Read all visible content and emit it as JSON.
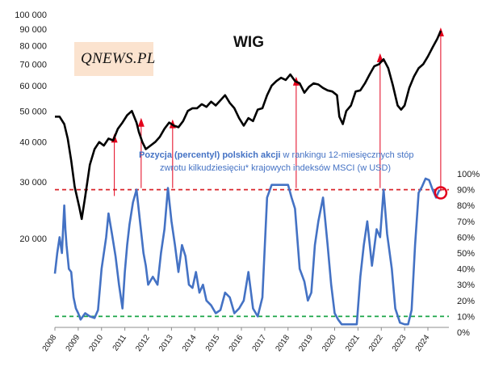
{
  "logo": {
    "text": "QNEWS.PL"
  },
  "chart_data": {
    "type": "line",
    "title": "WIG",
    "annotation": {
      "line1_bold": "Pozycja (percentyl) polskich akcji",
      "line1_rest": " w rankingu 12-miesięcznych stóp",
      "line2": "zwrotu kilkudziesięciu* krajowych indeksów MSCI (w USD)"
    },
    "x_axis": {
      "labels": [
        "2008",
        "2009",
        "2010",
        "2011",
        "2012",
        "2013",
        "2014",
        "2015",
        "2016",
        "2017",
        "2018",
        "2019",
        "2020",
        "2021",
        "2022",
        "2023",
        "2024"
      ],
      "range": [
        2008,
        2024.9
      ]
    },
    "y_left": {
      "scale": "log",
      "range": [
        10000,
        100000
      ],
      "ticks": [
        [
          20000,
          "20 000"
        ],
        [
          30000,
          "30 000"
        ],
        [
          40000,
          "40 000"
        ],
        [
          50000,
          "50 000"
        ],
        [
          60000,
          "60 000"
        ],
        [
          70000,
          "70 000"
        ],
        [
          80000,
          "80 000"
        ],
        [
          90000,
          "90 000"
        ],
        [
          100000,
          "100 000"
        ]
      ]
    },
    "y_right": {
      "range": [
        0,
        100
      ],
      "ticks": [
        [
          0,
          "0%"
        ],
        [
          10,
          "10%"
        ],
        [
          20,
          "20%"
        ],
        [
          30,
          "30%"
        ],
        [
          40,
          "40%"
        ],
        [
          50,
          "50%"
        ],
        [
          60,
          "60%"
        ],
        [
          70,
          "70%"
        ],
        [
          80,
          "80%"
        ],
        [
          90,
          "90%"
        ],
        [
          100,
          "100%"
        ]
      ]
    },
    "reference_lines": [
      {
        "axis": "right",
        "value": 90,
        "color": "#d9262b",
        "style": "dashed"
      },
      {
        "axis": "right",
        "value": 10,
        "color": "#1aa447",
        "style": "dashed"
      }
    ],
    "series": [
      {
        "axis": "left",
        "color": "#000000",
        "x": [
          2008.0,
          2008.2,
          2008.4,
          2008.55,
          2008.7,
          2008.85,
          2009.05,
          2009.15,
          2009.3,
          2009.5,
          2009.7,
          2009.9,
          2010.1,
          2010.3,
          2010.5,
          2010.7,
          2010.9,
          2011.1,
          2011.3,
          2011.5,
          2011.6,
          2011.75,
          2011.9,
          2012.1,
          2012.3,
          2012.5,
          2012.7,
          2012.9,
          2013.1,
          2013.3,
          2013.5,
          2013.7,
          2013.9,
          2014.1,
          2014.3,
          2014.5,
          2014.7,
          2014.9,
          2015.1,
          2015.3,
          2015.5,
          2015.7,
          2015.9,
          2016.1,
          2016.3,
          2016.5,
          2016.7,
          2016.9,
          2017.1,
          2017.3,
          2017.5,
          2017.7,
          2017.9,
          2018.1,
          2018.3,
          2018.5,
          2018.7,
          2018.9,
          2019.1,
          2019.3,
          2019.5,
          2019.7,
          2019.9,
          2020.1,
          2020.2,
          2020.35,
          2020.5,
          2020.7,
          2020.9,
          2021.1,
          2021.3,
          2021.5,
          2021.7,
          2021.9,
          2022.1,
          2022.3,
          2022.5,
          2022.7,
          2022.85,
          2023.0,
          2023.2,
          2023.4,
          2023.6,
          2023.8,
          2024.0,
          2024.2,
          2024.4,
          2024.55
        ],
        "values": [
          48000,
          48000,
          45500,
          41000,
          35000,
          29000,
          25000,
          23000,
          27000,
          34000,
          38000,
          40000,
          39000,
          41000,
          40500,
          44000,
          46000,
          48500,
          50000,
          46000,
          43000,
          40000,
          38000,
          39000,
          40000,
          41500,
          44000,
          46000,
          45000,
          44500,
          46500,
          50000,
          51000,
          51000,
          52500,
          51500,
          53500,
          52000,
          54000,
          56000,
          53000,
          51000,
          47500,
          45000,
          47500,
          46500,
          50500,
          51000,
          56000,
          60000,
          62000,
          63500,
          62500,
          65000,
          62000,
          61000,
          57000,
          59500,
          61000,
          60500,
          59000,
          58000,
          57500,
          56000,
          48000,
          45500,
          50000,
          52000,
          57500,
          58000,
          61000,
          65000,
          69000,
          70000,
          72500,
          68000,
          60000,
          52000,
          50500,
          52000,
          59000,
          64000,
          68000,
          70000,
          74000,
          79000,
          84000,
          89000
        ]
      },
      {
        "axis": "right",
        "color": "#4472c4",
        "x": [
          2008.0,
          2008.1,
          2008.2,
          2008.3,
          2008.4,
          2008.45,
          2008.5,
          2008.6,
          2008.7,
          2008.8,
          2008.9,
          2009.0,
          2009.1,
          2009.3,
          2009.5,
          2009.7,
          2009.85,
          2010.0,
          2010.2,
          2010.3,
          2010.45,
          2010.6,
          2010.75,
          2010.9,
          2011.0,
          2011.1,
          2011.2,
          2011.35,
          2011.5,
          2011.65,
          2011.8,
          2011.9,
          2012.0,
          2012.2,
          2012.4,
          2012.55,
          2012.7,
          2012.85,
          2013.0,
          2013.15,
          2013.3,
          2013.45,
          2013.6,
          2013.75,
          2013.9,
          2014.05,
          2014.2,
          2014.35,
          2014.5,
          2014.7,
          2014.9,
          2015.1,
          2015.3,
          2015.5,
          2015.7,
          2015.9,
          2016.1,
          2016.3,
          2016.5,
          2016.7,
          2016.9,
          2017.1,
          2017.3,
          2017.45,
          2017.6,
          2017.8,
          2018.0,
          2018.15,
          2018.3,
          2018.5,
          2018.7,
          2018.85,
          2019.0,
          2019.15,
          2019.3,
          2019.5,
          2019.7,
          2019.85,
          2020.0,
          2020.15,
          2020.3,
          2020.45,
          2020.6,
          2020.8,
          2020.95,
          2021.1,
          2021.25,
          2021.4,
          2021.6,
          2021.8,
          2021.95,
          2022.1,
          2022.25,
          2022.45,
          2022.6,
          2022.8,
          2023.0,
          2023.15,
          2023.3,
          2023.45,
          2023.6,
          2023.75,
          2023.9,
          2024.05,
          2024.2,
          2024.35,
          2024.5
        ],
        "values": [
          37,
          50,
          60,
          50,
          80,
          65,
          55,
          40,
          38,
          22,
          15,
          12,
          8,
          12,
          10,
          9,
          14,
          40,
          60,
          75,
          62,
          48,
          30,
          15,
          38,
          55,
          68,
          82,
          90,
          70,
          50,
          42,
          30,
          35,
          30,
          50,
          65,
          91,
          70,
          55,
          38,
          55,
          48,
          30,
          28,
          38,
          25,
          30,
          20,
          17,
          12,
          14,
          25,
          22,
          12,
          15,
          20,
          38,
          15,
          10,
          22,
          85,
          93,
          93,
          93,
          93,
          93,
          85,
          78,
          40,
          32,
          20,
          25,
          55,
          70,
          85,
          55,
          30,
          12,
          8,
          5,
          5,
          5,
          5,
          5,
          35,
          55,
          70,
          42,
          65,
          60,
          90,
          62,
          40,
          15,
          6,
          5,
          5,
          14,
          55,
          88,
          92,
          97,
          96,
          90,
          85,
          90
        ]
      }
    ],
    "arrows": [
      {
        "x": 2010.55,
        "y_from_pct": 86,
        "y_to_value": 41500,
        "color": "#e3001b"
      },
      {
        "x": 2011.7,
        "y_from_pct": 91,
        "y_to_value": 46500,
        "color": "#e3001b"
      },
      {
        "x": 2013.05,
        "y_from_pct": 91,
        "y_to_value": 46000,
        "color": "#e3001b"
      },
      {
        "x": 2018.35,
        "y_from_pct": 91,
        "y_to_value": 62500,
        "color": "#e3001b"
      },
      {
        "x": 2021.95,
        "y_from_pct": 91,
        "y_to_value": 74000,
        "color": "#e3001b"
      },
      {
        "x": 2024.55,
        "y_from_pct": 89,
        "y_to_value": 89000,
        "color": "#e3001b"
      }
    ],
    "highlight_circle": {
      "x": 2024.55,
      "y_pct": 88,
      "color": "#e3001b"
    }
  }
}
